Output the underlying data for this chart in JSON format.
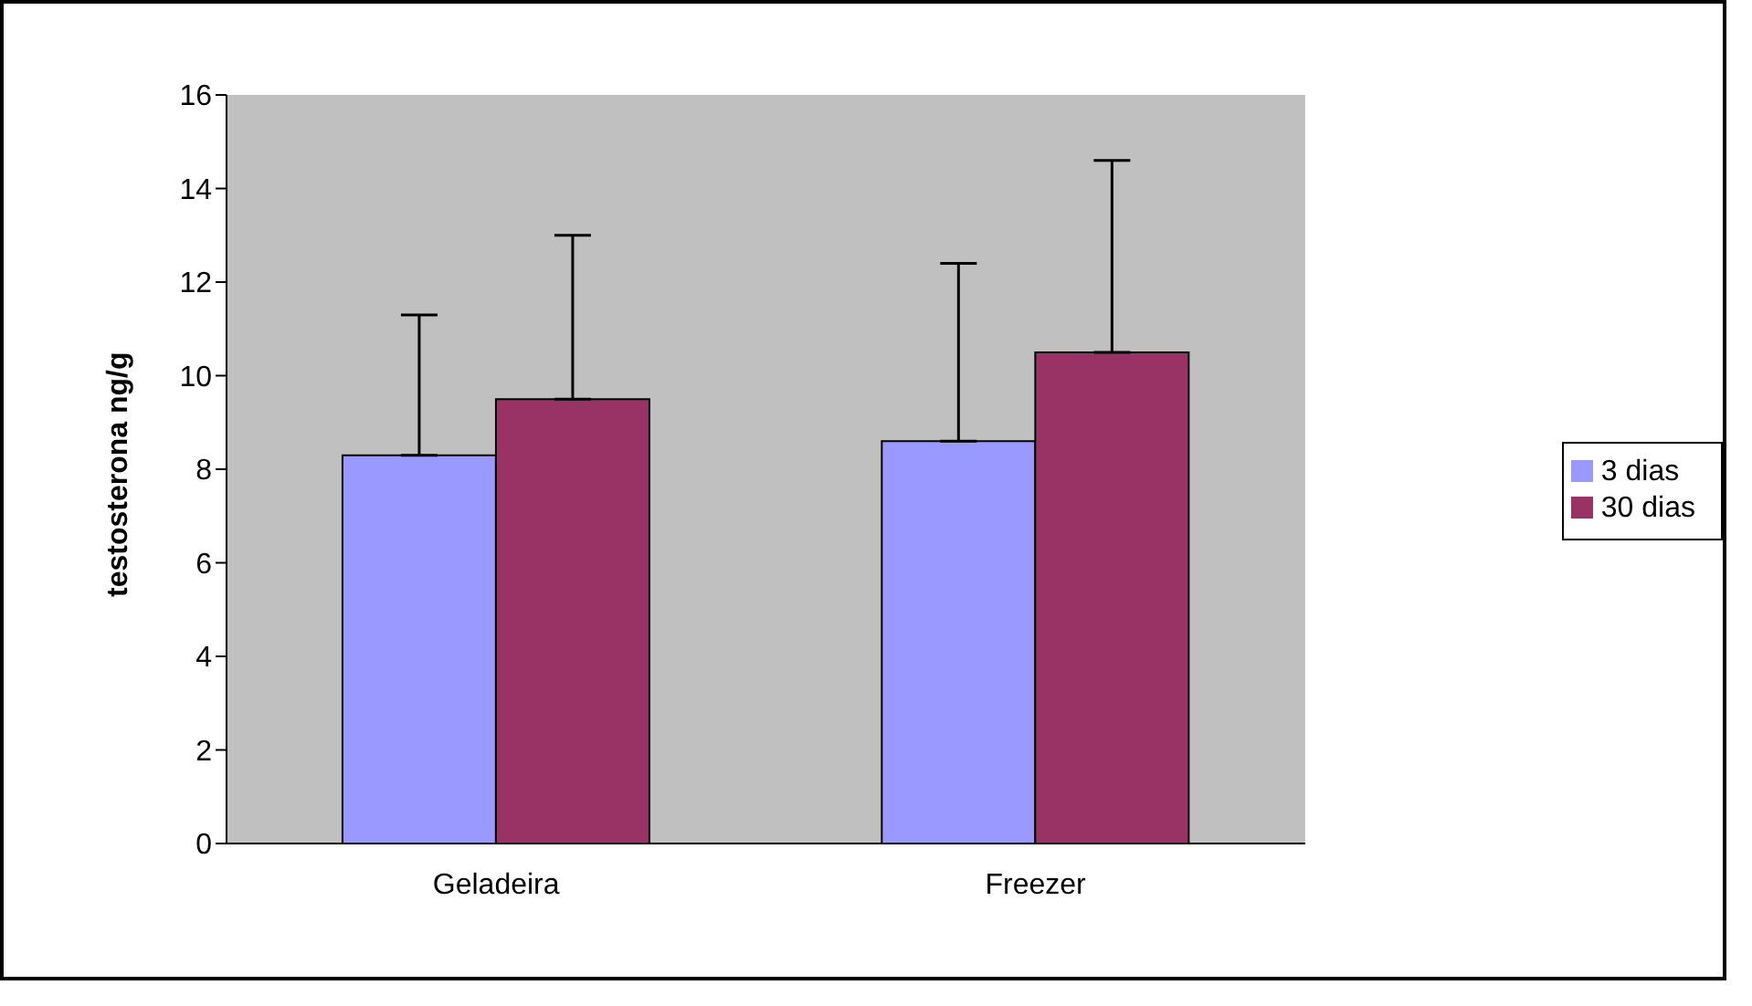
{
  "chart_data": {
    "type": "bar",
    "ylabel": "testosterona ng/g",
    "categories": [
      "Geladeira",
      "Freezer"
    ],
    "series": [
      {
        "name": "3 dias",
        "color": "#9999ff",
        "values": [
          8.3,
          8.6
        ],
        "errors": [
          [
            8.3,
            11.3
          ],
          [
            8.6,
            12.4
          ]
        ]
      },
      {
        "name": "30 dias",
        "color": "#993366",
        "values": [
          9.5,
          10.5
        ],
        "errors": [
          [
            9.5,
            13.0
          ],
          [
            10.5,
            14.6
          ]
        ]
      }
    ],
    "ylim": [
      0,
      16
    ],
    "yticks": [
      0,
      2,
      4,
      6,
      8,
      10,
      12,
      14,
      16
    ],
    "grid": false,
    "legend": "right"
  }
}
